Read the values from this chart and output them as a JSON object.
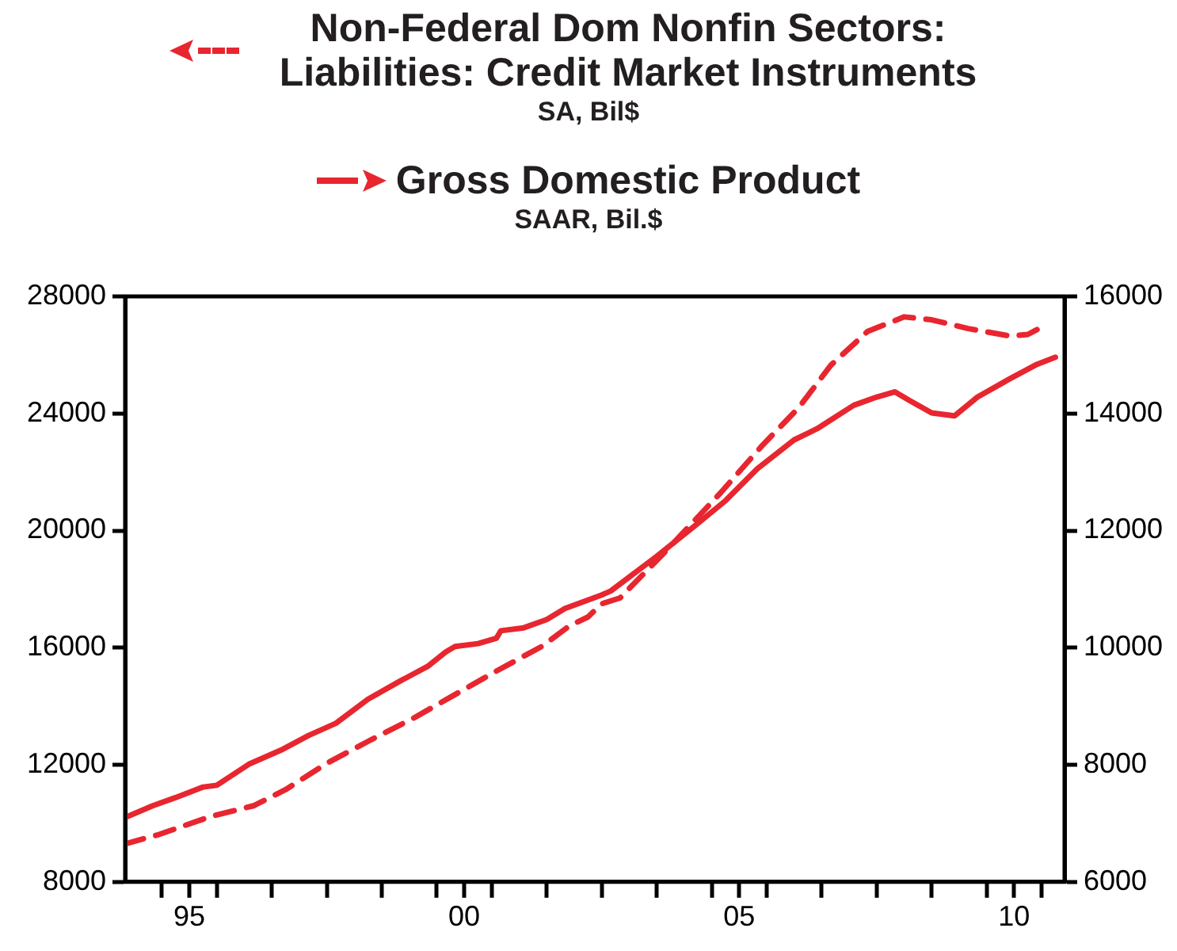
{
  "chart_data": {
    "type": "line",
    "series": [
      {
        "name": "Non-Federal Dom Nonfin Sectors: Liabilities: Credit Market Instruments",
        "color": "#e8262f",
        "axis": "y",
        "line_style": "dashed",
        "x": [
          "1994-05",
          "1994-12",
          "1995-12",
          "1996-09",
          "1997-04",
          "1998-01",
          "1998-10",
          "1999-08",
          "2000-05",
          "2001-02",
          "2001-12",
          "2002-06",
          "2002-10",
          "2003-01",
          "2003-05",
          "2004-03",
          "2005-03",
          "2005-12",
          "2006-08",
          "2007-03",
          "2007-11",
          "2008-07",
          "2009-01",
          "2009-09",
          "2010-06",
          "2010-10",
          "2011-01"
        ],
        "values": [
          9300,
          9600,
          10250,
          10600,
          11150,
          12050,
          12800,
          13600,
          14400,
          15200,
          16050,
          16750,
          17050,
          17500,
          17700,
          19300,
          21300,
          22900,
          24200,
          25650,
          26800,
          27300,
          27200,
          26900,
          26650,
          26700,
          26950
        ]
      },
      {
        "name": "Gross Domestic Product",
        "color": "#e8262f",
        "axis": "y2",
        "line_style": "solid",
        "x": [
          "1994-05",
          "1994-11",
          "1995-04",
          "1995-10",
          "1996-01",
          "1996-08",
          "1997-03",
          "1997-09",
          "1998-03",
          "1998-10",
          "1999-05",
          "1999-11",
          "2000-03",
          "2000-05",
          "2000-10",
          "2001-02",
          "2001-03",
          "2001-08",
          "2002-01",
          "2002-05",
          "2003-01",
          "2003-03",
          "2004-01",
          "2004-09",
          "2005-04",
          "2005-11",
          "2006-07",
          "2006-12",
          "2007-08",
          "2008-01",
          "2008-05",
          "2008-08",
          "2009-01",
          "2009-06",
          "2009-11",
          "2010-06",
          "2010-12",
          "2011-04"
        ],
        "values": [
          7100,
          7300,
          7440,
          7620,
          7650,
          8010,
          8250,
          8500,
          8710,
          9120,
          9430,
          9680,
          9930,
          10020,
          10070,
          10160,
          10290,
          10340,
          10480,
          10670,
          10900,
          10970,
          11560,
          12060,
          12510,
          13060,
          13550,
          13740,
          14140,
          14280,
          14370,
          14230,
          14010,
          13960,
          14280,
          14590,
          14840,
          14960
        ]
      }
    ],
    "annotations": [
      "SA, Bil$",
      "SAAR, Bil.$"
    ],
    "legend": "top",
    "xlim": [
      "1994-05",
      "2011-06"
    ],
    "xticks": [
      {
        "value": "1995",
        "label": null
      },
      {
        "value": "1995-07",
        "label": "95"
      },
      {
        "value": "1996",
        "label": null
      },
      {
        "value": "1997",
        "label": null
      },
      {
        "value": "1998",
        "label": null
      },
      {
        "value": "1999",
        "label": null
      },
      {
        "value": "2000",
        "label": null
      },
      {
        "value": "2000-07",
        "label": "00"
      },
      {
        "value": "2001",
        "label": null
      },
      {
        "value": "2002",
        "label": null
      },
      {
        "value": "2003",
        "label": null
      },
      {
        "value": "2004",
        "label": null
      },
      {
        "value": "2005",
        "label": null
      },
      {
        "value": "2005-07",
        "label": "05"
      },
      {
        "value": "2006",
        "label": null
      },
      {
        "value": "2007",
        "label": null
      },
      {
        "value": "2008",
        "label": null
      },
      {
        "value": "2009",
        "label": null
      },
      {
        "value": "2010",
        "label": null
      },
      {
        "value": "2010-07",
        "label": "10"
      },
      {
        "value": "2011",
        "label": null
      }
    ],
    "ylim": [
      8000,
      28000
    ],
    "yticks": [
      8000,
      12000,
      16000,
      20000,
      24000,
      28000
    ],
    "y2lim": [
      6000,
      16000
    ],
    "y2ticks": [
      6000,
      8000,
      10000,
      12000,
      14000,
      16000
    ],
    "grid": false
  }
}
